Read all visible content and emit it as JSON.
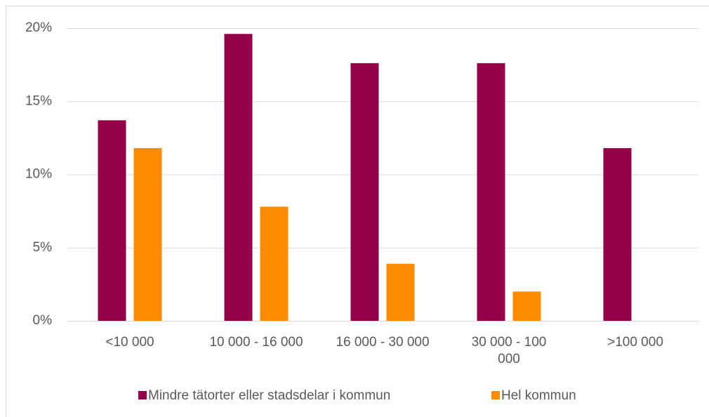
{
  "chart_data": {
    "type": "bar",
    "categories": [
      "<10 000",
      "10 000 - 16 000",
      "16 000 - 30 000",
      "30 000 - 100 000",
      ">100 000"
    ],
    "series": [
      {
        "name": "Mindre tätorter eller stadsdelar i kommun",
        "color": "#960048",
        "values": [
          13.7,
          19.6,
          17.6,
          17.6,
          11.8
        ]
      },
      {
        "name": "Hel kommun",
        "color": "#ff8c00",
        "values": [
          11.8,
          7.8,
          3.9,
          2.0,
          0
        ]
      }
    ],
    "ylim": [
      0,
      20
    ],
    "yticks": [
      {
        "value": 0,
        "label": "0%"
      },
      {
        "value": 5,
        "label": "5%"
      },
      {
        "value": 10,
        "label": "10%"
      },
      {
        "value": 15,
        "label": "15%"
      },
      {
        "value": 20,
        "label": "20%"
      }
    ],
    "grid": true,
    "legend": "bottom"
  }
}
